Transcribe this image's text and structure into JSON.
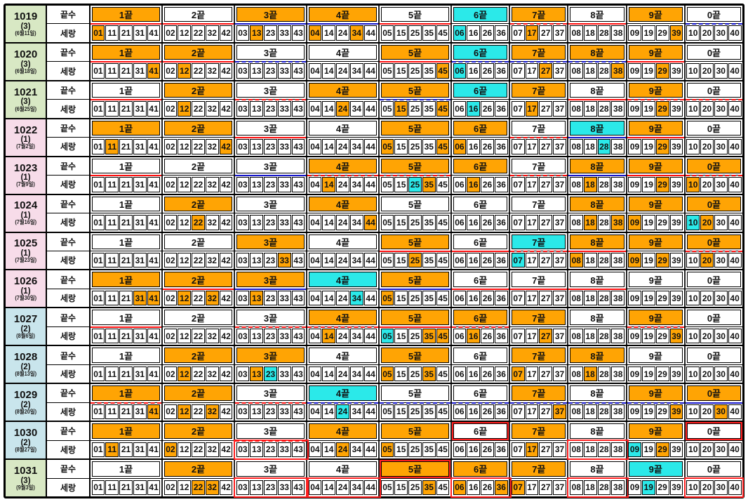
{
  "chart_data": {
    "type": "table",
    "description_visible_text_only": true,
    "sub_labels": {
      "top": "끝수",
      "bottom": "세랑"
    },
    "group_labels": [
      "1끝",
      "2끝",
      "3끝",
      "4끝",
      "5끝",
      "6끝",
      "7끝",
      "8끝",
      "9끝",
      "0끝"
    ],
    "group_numbers": {
      "1끝": [
        "01",
        "11",
        "21",
        "31",
        "41"
      ],
      "2끝": [
        "02",
        "12",
        "22",
        "32",
        "42"
      ],
      "3끝": [
        "03",
        "13",
        "23",
        "33",
        "43"
      ],
      "4끝": [
        "04",
        "14",
        "24",
        "34",
        "44"
      ],
      "5끝": [
        "05",
        "15",
        "25",
        "35",
        "45"
      ],
      "6끝": [
        "06",
        "16",
        "26",
        "36"
      ],
      "7끝": [
        "07",
        "17",
        "27",
        "37"
      ],
      "8끝": [
        "08",
        "18",
        "28",
        "38"
      ],
      "9끝": [
        "09",
        "19",
        "29",
        "39"
      ],
      "0끝": [
        "10",
        "20",
        "30",
        "40"
      ]
    },
    "legend_semantics": {
      "orange": "winning number",
      "cyan": "bonus number"
    },
    "rows": [
      {
        "draw": "1019",
        "tag": "(3)",
        "date": "(6월11일)",
        "color": "green",
        "headers": [
          "O",
          "W",
          "O",
          "O",
          "W",
          "C",
          "O",
          "W",
          "O",
          "W"
        ],
        "lines": [
          "r",
          "r",
          "b",
          "b",
          "r",
          "-",
          "rd",
          "r",
          "-",
          "bd"
        ],
        "winners": [
          "01",
          "04",
          "13",
          "17",
          "34",
          "39"
        ],
        "bonus": "06",
        "hbox": [],
        "cbox": []
      },
      {
        "draw": "1020",
        "tag": "(3)",
        "date": "(6월18일)",
        "color": "green",
        "headers": [
          "O",
          "O",
          "W",
          "W",
          "O",
          "C",
          "O",
          "O",
          "O",
          "W"
        ],
        "lines": [
          "r",
          "r",
          "bd",
          "-",
          "r",
          "bd",
          "bd",
          "bd",
          "r",
          "-"
        ],
        "winners": [
          "12",
          "27",
          "29",
          "38",
          "41",
          "45"
        ],
        "bonus": "06",
        "hbox": [],
        "cbox": []
      },
      {
        "draw": "1021",
        "tag": "(3)",
        "date": "(6월25일)",
        "color": "green",
        "headers": [
          "W",
          "O",
          "W",
          "O",
          "O",
          "C",
          "O",
          "W",
          "O",
          "W"
        ],
        "lines": [
          "r",
          "-",
          "rd",
          "-",
          "bd",
          "-",
          "-",
          "r",
          "rd",
          "rd"
        ],
        "winners": [
          "12",
          "15",
          "17",
          "24",
          "29",
          "45"
        ],
        "bonus": "16",
        "hbox": [],
        "cbox": []
      },
      {
        "draw": "1022",
        "tag": "(1)",
        "date": "(7월2일)",
        "color": "pink",
        "headers": [
          "O",
          "O",
          "W",
          "W",
          "O",
          "O",
          "W",
          "C",
          "O",
          "W"
        ],
        "lines": [
          "-",
          "-",
          "r",
          "-",
          "-",
          "-",
          "rd",
          "b",
          "r",
          "-"
        ],
        "winners": [
          "05",
          "06",
          "11",
          "29",
          "42",
          "45"
        ],
        "bonus": "28",
        "hbox": [],
        "cbox": []
      },
      {
        "draw": "1023",
        "tag": "(1)",
        "date": "(7월9일)",
        "color": "pink",
        "headers": [
          "W",
          "W",
          "W",
          "O",
          "O",
          "O",
          "W",
          "O",
          "O",
          "O"
        ],
        "lines": [
          "r",
          "-",
          "b",
          "rd",
          "rd",
          "-",
          "rd",
          "b",
          "r",
          "rd"
        ],
        "winners": [
          "10",
          "14",
          "16",
          "18",
          "29",
          "35"
        ],
        "bonus": "25",
        "hbox": [],
        "cbox": []
      },
      {
        "draw": "1024",
        "tag": "(1)",
        "date": "(7월16일)",
        "color": "pink",
        "headers": [
          "W",
          "O",
          "W",
          "O",
          "W",
          "W",
          "W",
          "O",
          "O",
          "O"
        ],
        "lines": [
          "-",
          "-",
          "-",
          "-",
          "-",
          "-",
          "-",
          "-",
          "-",
          "-"
        ],
        "winners": [
          "09",
          "18",
          "20",
          "22",
          "38",
          "44"
        ],
        "bonus": "10",
        "hbox": [],
        "cbox": []
      },
      {
        "draw": "1025",
        "tag": "(1)",
        "date": "(7월23일)",
        "color": "pink",
        "headers": [
          "W",
          "W",
          "O",
          "W",
          "O",
          "W",
          "C",
          "O",
          "O",
          "O"
        ],
        "lines": [
          "-",
          "-",
          "-",
          "-",
          "r",
          "r",
          "rd",
          "r",
          "-",
          "rd"
        ],
        "winners": [
          "08",
          "09",
          "20",
          "25",
          "29",
          "33"
        ],
        "bonus": "07",
        "hbox": [],
        "cbox": []
      },
      {
        "draw": "1026",
        "tag": "(1)",
        "date": "(7월30일)",
        "color": "pink",
        "headers": [
          "O",
          "O",
          "O",
          "C",
          "O",
          "W",
          "W",
          "W",
          "W",
          "W"
        ],
        "lines": [
          "-",
          "r",
          "b",
          "-",
          "b",
          "r",
          "r",
          "r",
          "-",
          "-"
        ],
        "winners": [
          "05",
          "12",
          "13",
          "31",
          "32",
          "41"
        ],
        "bonus": "34",
        "hbox": [],
        "cbox": []
      },
      {
        "draw": "1027",
        "tag": "(2)",
        "date": "(8월6일)",
        "color": "blue",
        "headers": [
          "W",
          "W",
          "W",
          "O",
          "O",
          "O",
          "O",
          "W",
          "O",
          "W"
        ],
        "lines": [
          "r",
          "-",
          "rd",
          "rd",
          "r",
          "rd",
          "-",
          "-",
          "rd",
          "-"
        ],
        "winners": [
          "14",
          "16",
          "27",
          "35",
          "39",
          "45"
        ],
        "bonus": "05",
        "hbox": [],
        "cbox": []
      },
      {
        "draw": "1028",
        "tag": "(2)",
        "date": "(8월13일)",
        "color": "blue",
        "headers": [
          "W",
          "O",
          "O",
          "W",
          "O",
          "W",
          "O",
          "O",
          "W",
          "W"
        ],
        "lines": [
          "-",
          "-",
          "-",
          "-",
          "-",
          "-",
          "-",
          "-",
          "-",
          "-"
        ],
        "winners": [
          "05",
          "07",
          "12",
          "13",
          "18",
          "35"
        ],
        "bonus": "23",
        "hbox": [],
        "cbox": []
      },
      {
        "draw": "1029",
        "tag": "(2)",
        "date": "(8월20일)",
        "color": "blue",
        "headers": [
          "O",
          "O",
          "W",
          "C",
          "W",
          "W",
          "O",
          "W",
          "O",
          "O"
        ],
        "lines": [
          "rd",
          "-",
          "rd",
          "bd",
          "bd",
          "bd",
          "bd",
          "bd",
          "bd",
          "b"
        ],
        "winners": [
          "12",
          "30",
          "32",
          "37",
          "39",
          "41"
        ],
        "bonus": "24",
        "hbox": [],
        "cbox": []
      },
      {
        "draw": "1030",
        "tag": "(2)",
        "date": "(8월27일)",
        "color": "blue",
        "headers": [
          "O",
          "O",
          "W",
          "O",
          "O",
          "W",
          "O",
          "W",
          "O",
          "W"
        ],
        "lines": [
          "-",
          "-",
          "rd",
          "-",
          "-",
          "-",
          "-",
          "-",
          "-",
          "-"
        ],
        "winners": [
          "02",
          "05",
          "11",
          "17",
          "24",
          "29"
        ],
        "bonus": "09",
        "hbox": [
          6,
          10
        ],
        "cbox": [
          3,
          8
        ]
      },
      {
        "draw": "1031",
        "tag": "(3)",
        "date": "(9월3일)",
        "color": "green",
        "headers": [
          "W",
          "O",
          "W",
          "W",
          "O",
          "O",
          "O",
          "W",
          "C",
          "W"
        ],
        "lines": [
          "-",
          "-",
          "-",
          "-",
          "-",
          "-",
          "-",
          "-",
          "-",
          "-"
        ],
        "winners": [
          "06",
          "07",
          "22",
          "32",
          "35",
          "36"
        ],
        "bonus": "19",
        "hbox": [
          5
        ],
        "cbox": [
          3,
          4,
          6,
          8,
          10
        ]
      }
    ]
  },
  "style": {
    "orange": "#FFA404",
    "cyan": "#2BE9E9",
    "label_green": "#D8E8C4",
    "label_pink": "#F7DCE9",
    "label_blue": "#C9E5EC",
    "line_red": "#FF1010",
    "line_blue": "#1717CC",
    "box_red": "#FF2020"
  }
}
